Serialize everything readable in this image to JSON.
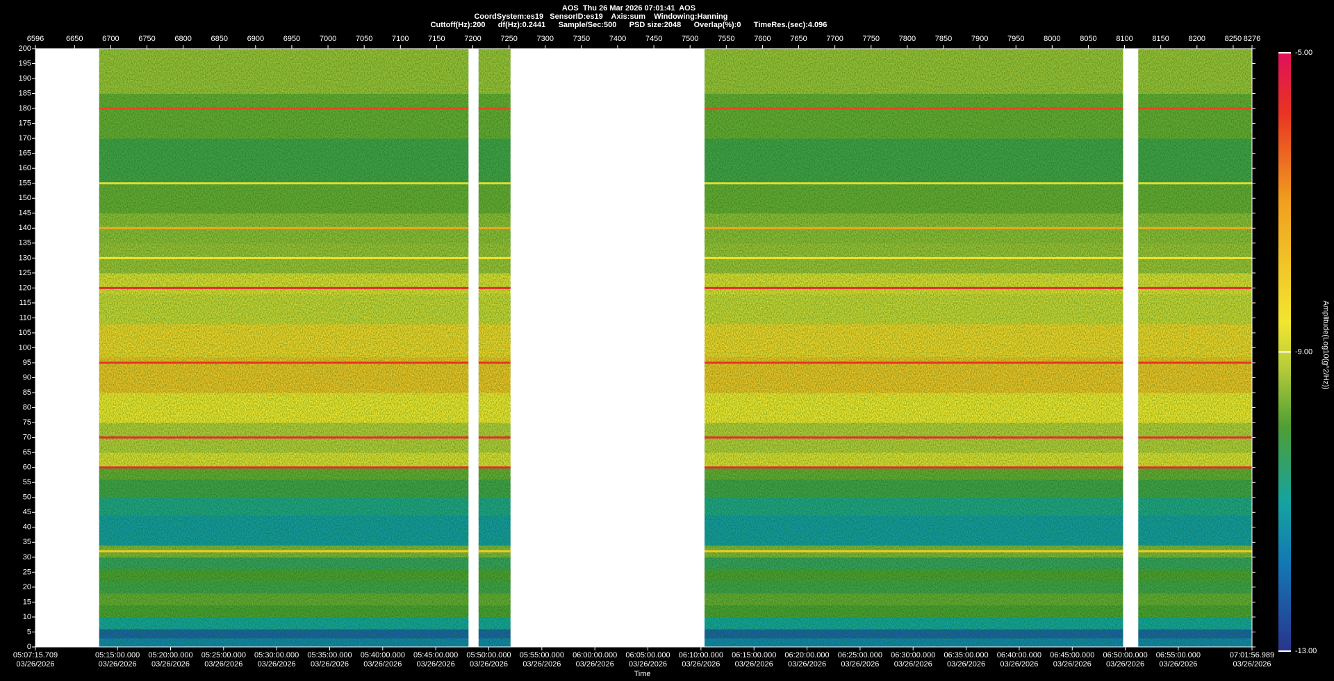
{
  "chart_data": {
    "type": "heatmap",
    "title": [
      "AOS  Thu 26 Mar 2026 07:01:41  AOS",
      "CoordSystem:es19   SensorID:es19    Axis:sum    Windowing:Hanning",
      "Cuttoff(Hz):200      df(Hz):0.2441      Sample/Sec:500      PSD size:2048      Overlap(%):0      TimeRes.(sec):4.096"
    ],
    "xlim": [
      6596,
      8276
    ],
    "xticks": [
      6596,
      6650,
      6700,
      6750,
      6800,
      6850,
      6900,
      6950,
      7000,
      7050,
      7100,
      7150,
      7200,
      7250,
      7300,
      7350,
      7400,
      7450,
      7500,
      7550,
      7600,
      7650,
      7700,
      7750,
      7800,
      7850,
      7900,
      7950,
      8000,
      8050,
      8100,
      8150,
      8200,
      8250,
      8276
    ],
    "time_ticks": [
      {
        "value": 6596,
        "label": "05:07:15.709",
        "date": "03/26/2026"
      },
      {
        "value": 6709.35,
        "label": "05:15:00.000",
        "date": "03/26/2026"
      },
      {
        "value": 6782.6,
        "label": "05:20:00.000",
        "date": "03/26/2026"
      },
      {
        "value": 6855.84,
        "label": "05:25:00.000",
        "date": "03/26/2026"
      },
      {
        "value": 6929.08,
        "label": "05:30:00.000",
        "date": "03/26/2026"
      },
      {
        "value": 7002.33,
        "label": "05:35:00.000",
        "date": "03/26/2026"
      },
      {
        "value": 7075.57,
        "label": "05:40:00.000",
        "date": "03/26/2026"
      },
      {
        "value": 7148.81,
        "label": "05:45:00.000",
        "date": "03/26/2026"
      },
      {
        "value": 7222.06,
        "label": "05:50:00.000",
        "date": "03/26/2026"
      },
      {
        "value": 7295.3,
        "label": "05:55:00.000",
        "date": "03/26/2026"
      },
      {
        "value": 7368.54,
        "label": "06:00:00.000",
        "date": "03/26/2026"
      },
      {
        "value": 7441.79,
        "label": "06:05:00.000",
        "date": "03/26/2026"
      },
      {
        "value": 7515.03,
        "label": "06:10:00.000",
        "date": "03/26/2026"
      },
      {
        "value": 7588.27,
        "label": "06:15:00.000",
        "date": "03/26/2026"
      },
      {
        "value": 7661.52,
        "label": "06:20:00.000",
        "date": "03/26/2026"
      },
      {
        "value": 7734.76,
        "label": "06:25:00.000",
        "date": "03/26/2026"
      },
      {
        "value": 7808.0,
        "label": "06:30:00.000",
        "date": "03/26/2026"
      },
      {
        "value": 7881.25,
        "label": "06:35:00.000",
        "date": "03/26/2026"
      },
      {
        "value": 7954.49,
        "label": "06:40:00.000",
        "date": "03/26/2026"
      },
      {
        "value": 8027.74,
        "label": "06:45:00.000",
        "date": "03/26/2026"
      },
      {
        "value": 8100.98,
        "label": "06:50:00.000",
        "date": "03/26/2026"
      },
      {
        "value": 8174.22,
        "label": "06:55:00.000",
        "date": "03/26/2026"
      },
      {
        "value": 8276,
        "label": "07:01:56.989",
        "date": "03/26/2026"
      }
    ],
    "xlabel": "Time",
    "ylim": [
      0,
      200
    ],
    "yticks": [
      0,
      5,
      10,
      15,
      20,
      25,
      30,
      35,
      40,
      45,
      50,
      55,
      60,
      65,
      70,
      75,
      80,
      85,
      90,
      95,
      100,
      105,
      110,
      115,
      120,
      125,
      130,
      135,
      140,
      145,
      150,
      155,
      160,
      165,
      170,
      175,
      180,
      185,
      190,
      195,
      200
    ],
    "segments": [
      [
        6684,
        7194
      ],
      [
        7208,
        7252
      ],
      [
        7520,
        8098
      ],
      [
        8119,
        8276
      ]
    ],
    "bands": [
      0,
      3,
      6,
      10,
      14,
      18,
      22,
      26,
      30,
      34,
      44,
      50,
      56,
      60,
      65,
      75,
      85,
      97,
      108,
      118,
      125,
      135,
      145,
      155,
      170,
      185,
      200
    ],
    "levels": [
      -11.6,
      -12.2,
      -11,
      -10,
      -9.8,
      -10.2,
      -10,
      -10.4,
      -9.6,
      -11.2,
      -10.8,
      -10.2,
      -9.8,
      -8.8,
      -9.2,
      -8.6,
      -7.8,
      -8.2,
      -9,
      -8.8,
      -9.4,
      -9.5,
      -9.8,
      -10.2,
      -9.8,
      -9.4
    ],
    "lines": {
      "freq": [
        180,
        120,
        95,
        70,
        60,
        32,
        130,
        155,
        140
      ],
      "levels": [
        -6,
        -5.6,
        -5.8,
        -5.6,
        -5.6,
        -8,
        -8.5,
        -8.8,
        -7.2
      ]
    },
    "colorbar": {
      "lim": [
        -13,
        -5
      ],
      "ticks": [
        {
          "value": -5,
          "label": "-5.00"
        },
        {
          "value": -9,
          "label": "-9.00"
        },
        {
          "value": -13,
          "label": "-13.00"
        }
      ],
      "label": "Amplitude(Log10(g^2/Hz))",
      "values": [
        -13,
        -11.8,
        -11,
        -10,
        -9.2,
        -8.6,
        -7,
        -5.8,
        -5
      ],
      "colors": [
        "#28358c",
        "#1479b4",
        "#16a3a0",
        "#4e9e34",
        "#b8cc3a",
        "#f2e630",
        "#f0a020",
        "#e83422",
        "#e0105a"
      ]
    }
  }
}
